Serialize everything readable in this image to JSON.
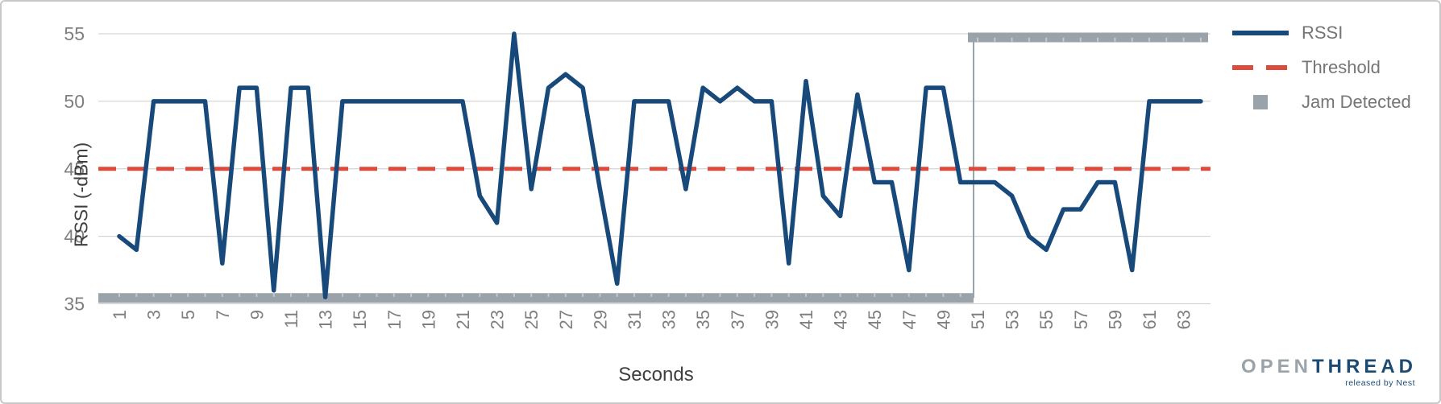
{
  "chart_data": {
    "type": "line",
    "title": "",
    "xlabel": "Seconds",
    "ylabel": "RSSI (-dBm)",
    "ylim": [
      35,
      55
    ],
    "xlim": [
      1,
      64
    ],
    "grid": true,
    "legend_position": "right",
    "y_ticks": [
      35,
      40,
      45,
      50,
      55
    ],
    "x_tick_labels": [
      1,
      3,
      5,
      7,
      9,
      11,
      13,
      15,
      17,
      19,
      21,
      23,
      25,
      27,
      29,
      31,
      33,
      35,
      37,
      39,
      41,
      43,
      45,
      47,
      49,
      51,
      53,
      55,
      57,
      59,
      61,
      63
    ],
    "series": [
      {
        "name": "RSSI",
        "type": "line",
        "color": "#17497a",
        "x_start": 1,
        "values": [
          40,
          39,
          50,
          50,
          50,
          50,
          38,
          51,
          51,
          36,
          51,
          51,
          35.5,
          50,
          50,
          50,
          50,
          50,
          50,
          50,
          50,
          43,
          41,
          55,
          43.5,
          51,
          52,
          51,
          43.5,
          36.5,
          50,
          50,
          50,
          43.5,
          51,
          50,
          51,
          50,
          50,
          38,
          51.5,
          43,
          41.5,
          50.5,
          44,
          44,
          37.5,
          51,
          51,
          44,
          44,
          44,
          43,
          40,
          39,
          42,
          42,
          44,
          44,
          37.5,
          50,
          50,
          50,
          50
        ]
      },
      {
        "name": "Threshold",
        "type": "line",
        "style": "dashed",
        "color": "#dc4b3c",
        "value": 45
      },
      {
        "name": "Jam Detected",
        "type": "step",
        "color": "#9aa3a9",
        "low_value": 35,
        "high_value": 55,
        "transition_x": 51,
        "description": "indicator runs along 35 (no jam) for seconds 1-50, jumps to 55 (jam detected) from second 51 to the right edge"
      }
    ]
  },
  "logo": {
    "open": "OPEN",
    "thread": "THREAD",
    "tagline": "released by Nest"
  }
}
